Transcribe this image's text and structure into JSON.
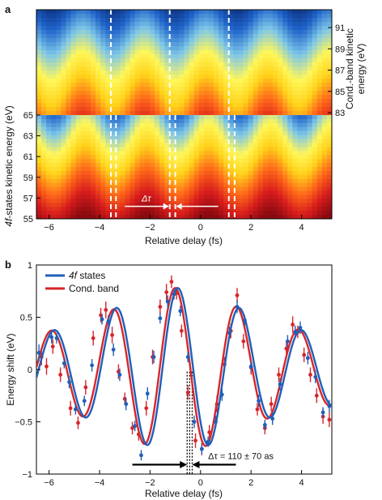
{
  "chart_data": [
    {
      "panel": "a",
      "type": "heatmap",
      "xlabel": "Relative delay (fs)",
      "x_range": [
        -6.5,
        5.2
      ],
      "x_ticks": [
        -6,
        -4,
        -2,
        0,
        2,
        4
      ],
      "x_tick_labels": [
        "−6",
        "−4",
        "−2",
        "0",
        "2",
        "4"
      ],
      "ylabel_left": "4f-states kinetic energy (eV)",
      "y_range_left": [
        55,
        65
      ],
      "y_ticks_left": [
        55,
        57,
        59,
        61,
        63,
        65
      ],
      "ylabel_right": "Cond.-band kinetic energy (eV)",
      "y_range_right": [
        81,
        93
      ],
      "y_ticks_right": [
        83,
        85,
        87,
        89,
        91
      ],
      "colormap": [
        "#8b0a10",
        "#d81d1d",
        "#ff6a1a",
        "#ffd21a",
        "#fff75a",
        "#7ec7e8",
        "#1f63c9",
        "#0b2b77"
      ],
      "maxima_lines_top": [
        -3.55,
        -1.22,
        1.12
      ],
      "maxima_lines_bottom": [
        -3.55,
        -3.35,
        -1.22,
        -1.0,
        1.12,
        1.35
      ],
      "annotation": {
        "label": "Δτ",
        "from": -1.22,
        "to": -1.0,
        "y": 56.2
      }
    },
    {
      "panel": "b",
      "type": "line",
      "xlabel": "Relative delay (fs)",
      "ylabel": "Energy shift (eV)",
      "xlim": [
        -6.5,
        5.2
      ],
      "ylim": [
        -1,
        1
      ],
      "x_ticks": [
        -6,
        -4,
        -2,
        0,
        2,
        4
      ],
      "x_tick_labels": [
        "−6",
        "−4",
        "−2",
        "0",
        "2",
        "4"
      ],
      "y_ticks": [
        -1,
        -0.5,
        0,
        0.5,
        1
      ],
      "y_tick_labels": [
        "−1",
        "−0.5",
        "0",
        "0.5",
        "1"
      ],
      "legend_position": "top-left",
      "series": [
        {
          "name": "4f states",
          "color": "#1f5fb8",
          "model": {
            "center": -0.9,
            "sigma": 10.0,
            "amplitude": 0.78,
            "period": 2.45,
            "phase_peak": -0.9
          },
          "points": [
            [
              -6.4,
              0.16,
              0.08
            ],
            [
              -5.9,
              0.31,
              0.06
            ],
            [
              -5.7,
              0.3,
              0.05
            ],
            [
              -5.4,
              0.06,
              0.05
            ],
            [
              -5.2,
              -0.12,
              0.06
            ],
            [
              -4.95,
              -0.38,
              0.05
            ],
            [
              -4.6,
              -0.3,
              0.05
            ],
            [
              -4.3,
              0.04,
              0.06
            ],
            [
              -3.9,
              0.48,
              0.05
            ],
            [
              -3.65,
              0.46,
              0.06
            ],
            [
              -3.45,
              0.19,
              0.06
            ],
            [
              -3.2,
              -0.05,
              0.06
            ],
            [
              -2.95,
              -0.33,
              0.06
            ],
            [
              -2.6,
              -0.54,
              0.05
            ],
            [
              -2.35,
              -0.82,
              0.05
            ],
            [
              -2.1,
              -0.23,
              0.06
            ],
            [
              -1.85,
              0.12,
              0.06
            ],
            [
              -1.6,
              0.49,
              0.05
            ],
            [
              -1.3,
              0.65,
              0.06
            ],
            [
              -1.05,
              0.72,
              0.05
            ],
            [
              -0.8,
              0.56,
              0.05
            ],
            [
              -0.5,
              0.12,
              0.05
            ],
            [
              -0.25,
              -0.5,
              0.06
            ],
            [
              0.05,
              -0.76,
              0.05
            ],
            [
              0.3,
              -0.69,
              0.05
            ],
            [
              0.6,
              -0.5,
              0.06
            ],
            [
              0.85,
              -0.24,
              0.06
            ],
            [
              1.15,
              0.35,
              0.06
            ],
            [
              1.45,
              0.6,
              0.06
            ],
            [
              1.75,
              0.47,
              0.05
            ],
            [
              2.0,
              0.03,
              0.05
            ],
            [
              2.3,
              -0.3,
              0.06
            ],
            [
              2.55,
              -0.53,
              0.05
            ],
            [
              2.85,
              -0.47,
              0.06
            ],
            [
              3.15,
              -0.14,
              0.06
            ],
            [
              3.45,
              0.27,
              0.06
            ],
            [
              3.75,
              0.36,
              0.06
            ],
            [
              3.95,
              0.4,
              0.06
            ],
            [
              4.25,
              0.11,
              0.06
            ],
            [
              4.55,
              -0.07,
              0.06
            ],
            [
              4.85,
              -0.41,
              0.05
            ],
            [
              5.1,
              -0.35,
              0.06
            ]
          ]
        },
        {
          "name": "Cond. band",
          "color": "#d6262b",
          "model": {
            "center": -0.9,
            "sigma": 10.0,
            "amplitude": 0.78,
            "period": 2.45,
            "phase_peak": -1.01
          },
          "points": [
            [
              -6.3,
              0.12,
              0.08
            ],
            [
              -6.1,
              0.03,
              0.08
            ],
            [
              -5.85,
              0.22,
              0.07
            ],
            [
              -5.55,
              -0.05,
              0.07
            ],
            [
              -5.15,
              -0.37,
              0.07
            ],
            [
              -4.85,
              -0.51,
              0.06
            ],
            [
              -4.55,
              -0.17,
              0.07
            ],
            [
              -4.25,
              0.3,
              0.07
            ],
            [
              -3.95,
              0.52,
              0.07
            ],
            [
              -3.75,
              0.57,
              0.08
            ],
            [
              -3.5,
              0.33,
              0.08
            ],
            [
              -3.25,
              -0.02,
              0.07
            ],
            [
              -3.0,
              -0.28,
              0.06
            ],
            [
              -2.7,
              -0.56,
              0.06
            ],
            [
              -2.45,
              -0.62,
              0.06
            ],
            [
              -2.15,
              -0.37,
              0.07
            ],
            [
              -1.9,
              0.12,
              0.07
            ],
            [
              -1.6,
              0.6,
              0.07
            ],
            [
              -1.35,
              0.74,
              0.08
            ],
            [
              -1.15,
              0.84,
              0.06
            ],
            [
              -0.95,
              0.73,
              0.06
            ],
            [
              -0.75,
              0.37,
              0.06
            ],
            [
              -0.5,
              -0.22,
              0.07
            ],
            [
              -0.2,
              -0.68,
              0.07
            ],
            [
              0.05,
              -0.76,
              0.06
            ],
            [
              0.35,
              -0.6,
              0.07
            ],
            [
              0.65,
              -0.33,
              0.08
            ],
            [
              0.95,
              0.05,
              0.07
            ],
            [
              1.2,
              0.37,
              0.07
            ],
            [
              1.45,
              0.71,
              0.07
            ],
            [
              1.7,
              0.27,
              0.07
            ],
            [
              2.0,
              0.02,
              0.07
            ],
            [
              2.25,
              -0.38,
              0.06
            ],
            [
              2.55,
              -0.56,
              0.06
            ],
            [
              2.8,
              -0.33,
              0.07
            ],
            [
              3.1,
              -0.05,
              0.07
            ],
            [
              3.4,
              0.2,
              0.07
            ],
            [
              3.65,
              0.43,
              0.08
            ],
            [
              3.85,
              0.36,
              0.06
            ],
            [
              4.1,
              0.14,
              0.07
            ],
            [
              4.35,
              -0.05,
              0.07
            ],
            [
              4.6,
              -0.25,
              0.07
            ],
            [
              4.85,
              -0.45,
              0.07
            ],
            [
              5.1,
              -0.48,
              0.07
            ]
          ]
        }
      ],
      "dotted_lines_x": [
        -0.53,
        -0.43,
        -0.33
      ],
      "annotation": {
        "label": "Δτ = 110 ± 70 as",
        "arrow_left_from": -2.7,
        "arrow_right_from": 1.4,
        "arrow_to_left": -0.53,
        "arrow_to_right": -0.33,
        "y": -0.91
      }
    }
  ],
  "labels": {
    "panel_a": "a",
    "panel_b": "b",
    "delta_tau": "Δτ",
    "delta_tau_b": "Δτ = 110 ± 70 as",
    "legend_4f": "4f states",
    "legend_cb": "Cond. band"
  }
}
